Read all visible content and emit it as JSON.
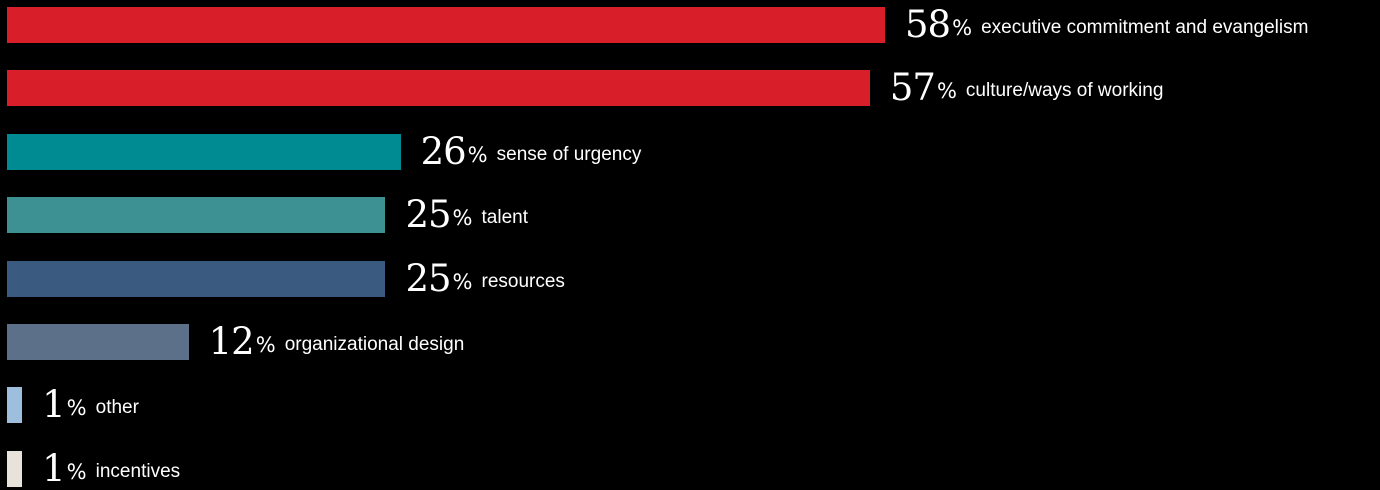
{
  "chart_data": {
    "type": "bar",
    "orientation": "horizontal",
    "title": "",
    "xlabel": "",
    "ylabel": "",
    "xlim": [
      0,
      58
    ],
    "grid": false,
    "legend": "none",
    "unit": "%",
    "categories": [
      "executive commitment and evangelism",
      "culture/ways of working",
      "sense of urgency",
      "talent",
      "resources",
      "organizational design",
      "other",
      "incentives"
    ],
    "values": [
      58,
      57,
      26,
      25,
      25,
      12,
      1,
      1
    ],
    "colors": [
      "#d81e29",
      "#d81e29",
      "#008b92",
      "#3d9193",
      "#3a5a80",
      "#5c7089",
      "#9dbfdd",
      "#e8e3da"
    ]
  }
}
